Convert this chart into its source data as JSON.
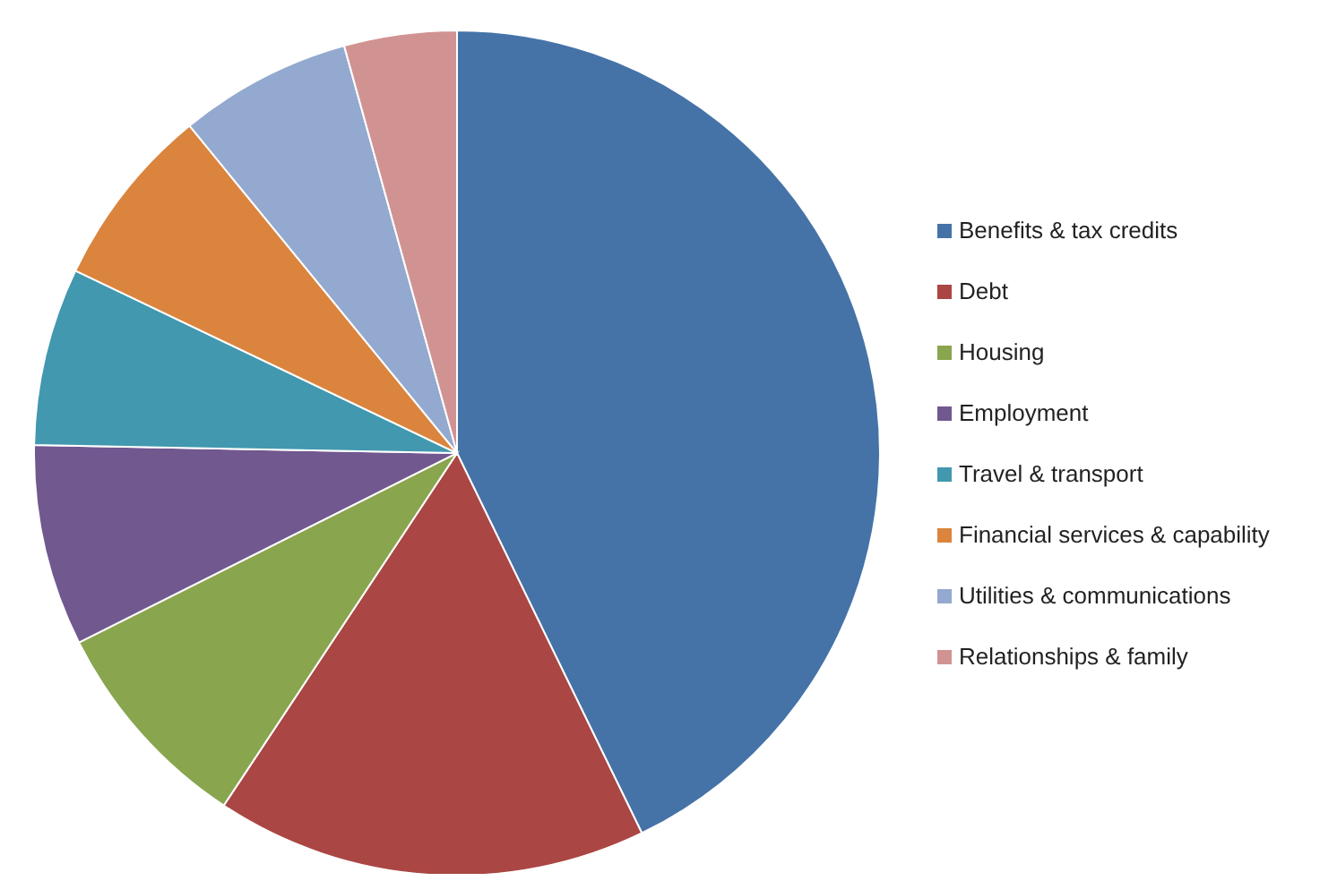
{
  "chart_data": {
    "type": "pie",
    "categories": [
      "Benefits & tax credits",
      "Debt",
      "Housing",
      "Employment",
      "Travel & transport",
      "Financial services & capability",
      "Utilities & communications",
      "Relationships & family"
    ],
    "values": [
      42.8,
      16.5,
      8.3,
      7.7,
      6.8,
      7.0,
      6.6,
      4.3
    ],
    "colors": [
      "#4573a7",
      "#aa4643",
      "#89a54e",
      "#71588f",
      "#4198af",
      "#db843d",
      "#93a9cf",
      "#d19392"
    ],
    "legend": "right"
  }
}
